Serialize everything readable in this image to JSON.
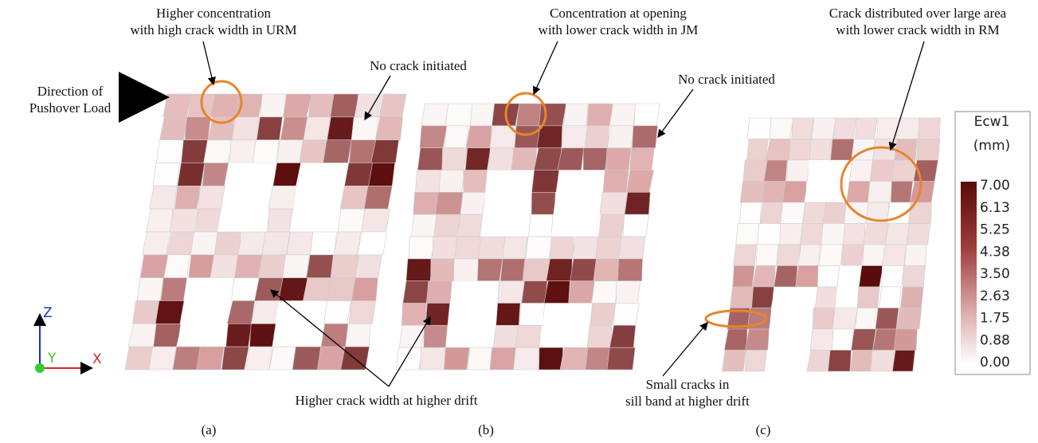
{
  "panels": [
    {
      "caption": "(a)",
      "notes": [
        [
          "Higher concentration",
          "with high crack width in URM"
        ],
        [
          "Direction of",
          "Pushover Load"
        ],
        [
          "No crack initiated"
        ]
      ]
    },
    {
      "caption": "(b)",
      "notes": [
        [
          "Concentration at opening",
          "with lower crack width in JM"
        ],
        [
          "No crack initiated"
        ]
      ]
    },
    {
      "caption": "(c)",
      "notes": [
        [
          "Crack distributed over large area",
          "with lower crack width in RM"
        ]
      ]
    }
  ],
  "shared_notes": [
    [
      "Higher crack width at higher drift"
    ],
    [
      "Small cracks in",
      "sill band at higher drift"
    ]
  ],
  "colorbar": {
    "title": "Ecw1",
    "unit": "(mm)",
    "labels": [
      "7.00",
      "6.13",
      "5.25",
      "4.38",
      "3.50",
      "2.63",
      "1.75",
      "0.88",
      "0.00"
    ]
  },
  "axes": {
    "z": "Z",
    "y": "Y",
    "x": "X"
  }
}
